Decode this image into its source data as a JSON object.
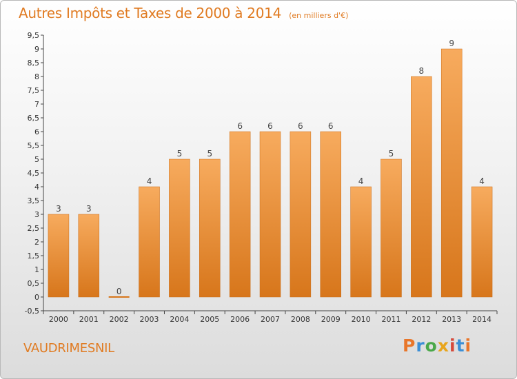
{
  "header": {
    "title": "Autres Impôts et Taxes de 2000 à 2014",
    "subtitle": "(en milliers d'€)"
  },
  "footer": {
    "commune": "VAUDRIMESNIL",
    "logo": "Proxiti"
  },
  "colors": {
    "accent": "#e07b22",
    "bar_light": "#f6a85a",
    "bar_dark": "#d9781c",
    "logo_letters": [
      "#e8762a",
      "#3b8fd6",
      "#4aa84a",
      "#e8a51c",
      "#d64a3b",
      "#3b8fd6",
      "#e8762a"
    ]
  },
  "chart_data": {
    "type": "bar",
    "title": "Autres Impôts et Taxes de 2000 à 2014",
    "subtitle": "(en milliers d'€)",
    "categories": [
      "2000",
      "2001",
      "2002",
      "2003",
      "2004",
      "2005",
      "2006",
      "2007",
      "2008",
      "2009",
      "2010",
      "2011",
      "2012",
      "2013",
      "2014"
    ],
    "values": [
      3,
      3,
      0,
      4,
      5,
      5,
      6,
      6,
      6,
      6,
      4,
      5,
      8,
      9,
      4
    ],
    "data_labels": [
      "3",
      "3",
      "0",
      "4",
      "5",
      "5",
      "6",
      "6",
      "6",
      "6",
      "4",
      "5",
      "8",
      "9",
      "4"
    ],
    "ylim": [
      -0.5,
      9.5
    ],
    "yticks": [
      -0.5,
      0,
      0.5,
      1,
      1.5,
      2,
      2.5,
      3,
      3.5,
      4,
      4.5,
      5,
      5.5,
      6,
      6.5,
      7,
      7.5,
      8,
      8.5,
      9,
      9.5
    ],
    "ytick_labels": [
      "-0,5",
      "0",
      "0,5",
      "1",
      "1,5",
      "2",
      "2,5",
      "3",
      "3,5",
      "4",
      "4,5",
      "5",
      "5,5",
      "6",
      "6,5",
      "7",
      "7,5",
      "8",
      "8,5",
      "9",
      "9,5"
    ],
    "grid": false,
    "xlabel": "",
    "ylabel": ""
  }
}
